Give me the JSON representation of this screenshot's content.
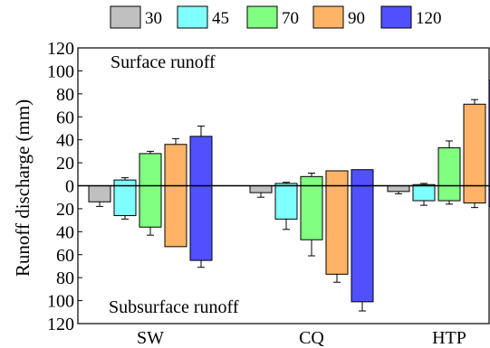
{
  "chart_data": {
    "type": "bar",
    "title": "",
    "xlabel": "",
    "ylabel": "Runoff discharge (mm)",
    "ylim": [
      -120,
      120
    ],
    "y_ticks": [
      120,
      100,
      80,
      60,
      40,
      20,
      0,
      20,
      40,
      60,
      80,
      100,
      120
    ],
    "categories": [
      "SW",
      "CQ",
      "HTP"
    ],
    "legend_position": "top",
    "annotations": {
      "upper": "Surface runoff",
      "lower": "Subsurface runoff"
    },
    "series": [
      {
        "name": "30",
        "color": "#c0c0c0",
        "surface": [
          0,
          0,
          0
        ],
        "surface_err": [
          0,
          0,
          0
        ],
        "subsurface": [
          14,
          6,
          5
        ],
        "subsurface_err": [
          4,
          4,
          2
        ]
      },
      {
        "name": "45",
        "color": "#80ffff",
        "surface": [
          5,
          2,
          1
        ],
        "surface_err": [
          2,
          1,
          1
        ],
        "subsurface": [
          26,
          29,
          13
        ],
        "subsurface_err": [
          3,
          9,
          4
        ]
      },
      {
        "name": "70",
        "color": "#80ff80",
        "surface": [
          28,
          8,
          33
        ],
        "surface_err": [
          2,
          3,
          6
        ],
        "subsurface": [
          36,
          47,
          13
        ],
        "subsurface_err": [
          7,
          14,
          3
        ]
      },
      {
        "name": "90",
        "color": "#ffb366",
        "surface": [
          36,
          13,
          71
        ],
        "surface_err": [
          5,
          0,
          4
        ],
        "subsurface": [
          53,
          77,
          15
        ],
        "subsurface_err": [
          0,
          7,
          4
        ]
      },
      {
        "name": "120",
        "color": "#5050ff",
        "surface": [
          43,
          14,
          92
        ],
        "surface_err": [
          9,
          0,
          11
        ],
        "subsurface": [
          65,
          101,
          18
        ],
        "subsurface_err": [
          6,
          8,
          2
        ]
      }
    ]
  }
}
